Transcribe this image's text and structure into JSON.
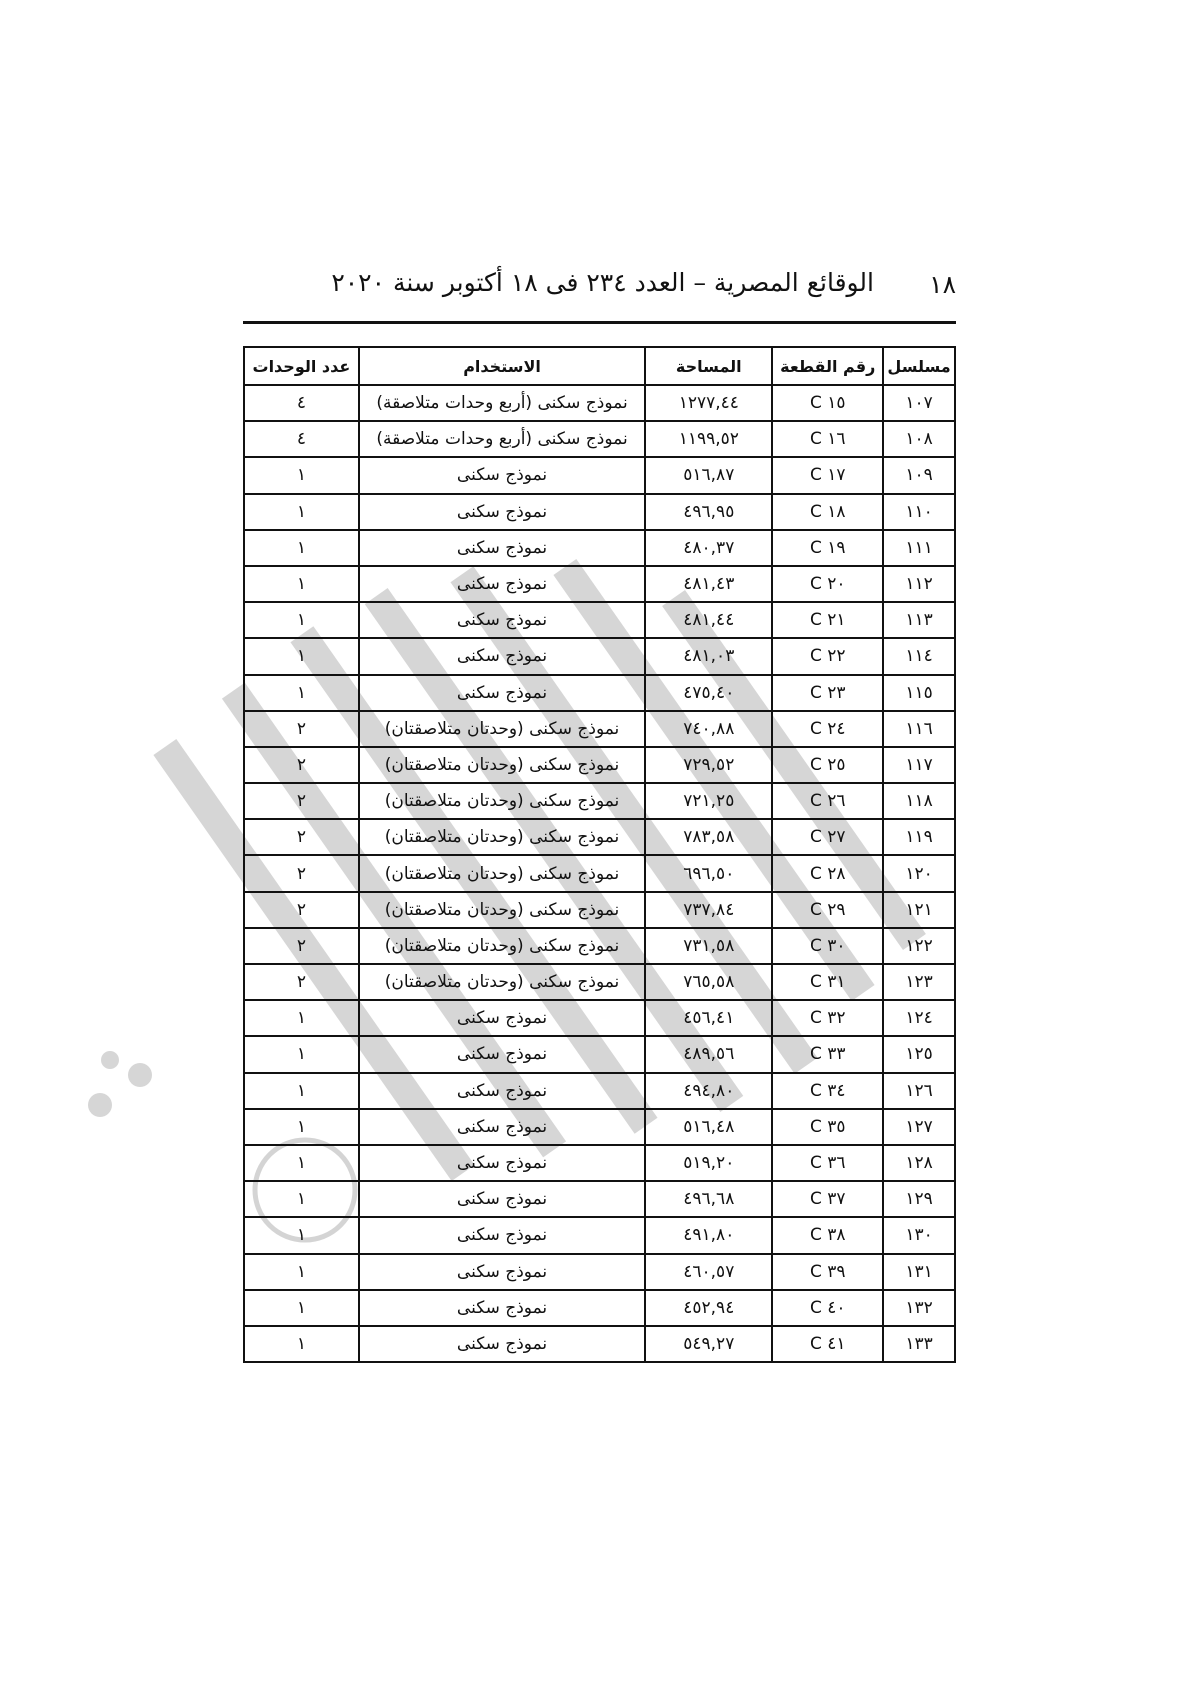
{
  "header": {
    "page_number": "١٨",
    "title": "الوقائع المصرية – العدد ٢٣٤ فى ١٨ أكتوبر سنة ٢٠٢٠"
  },
  "table": {
    "columns": [
      "مسلسل",
      "رقم القطعة",
      "المساحة",
      "الاستخدام",
      "عدد الوحدات"
    ],
    "rows": [
      [
        "١٠٧",
        "C ١٥",
        "١٢٧٧,٤٤",
        "نموذج سكنى (أربع وحدات متلاصقة)",
        "٤"
      ],
      [
        "١٠٨",
        "C ١٦",
        "١١٩٩,٥٢",
        "نموذج سكنى (أربع وحدات متلاصقة)",
        "٤"
      ],
      [
        "١٠٩",
        "C ١٧",
        "٥١٦,٨٧",
        "نموذج سكنى",
        "١"
      ],
      [
        "١١٠",
        "C ١٨",
        "٤٩٦,٩٥",
        "نموذج سكنى",
        "١"
      ],
      [
        "١١١",
        "C ١٩",
        "٤٨٠,٣٧",
        "نموذج سكنى",
        "١"
      ],
      [
        "١١٢",
        "C ٢٠",
        "٤٨١,٤٣",
        "نموذج سكنى",
        "١"
      ],
      [
        "١١٣",
        "C ٢١",
        "٤٨١,٤٤",
        "نموذج سكنى",
        "١"
      ],
      [
        "١١٤",
        "C ٢٢",
        "٤٨١,٠٣",
        "نموذج سكنى",
        "١"
      ],
      [
        "١١٥",
        "C ٢٣",
        "٤٧٥,٤٠",
        "نموذج سكنى",
        "١"
      ],
      [
        "١١٦",
        "C ٢٤",
        "٧٤٠,٨٨",
        "نموذج سكنى (وحدتان متلاصقتان)",
        "٢"
      ],
      [
        "١١٧",
        "C ٢٥",
        "٧٢٩,٥٢",
        "نموذج سكنى (وحدتان متلاصقتان)",
        "٢"
      ],
      [
        "١١٨",
        "C ٢٦",
        "٧٢١,٢٥",
        "نموذج سكنى (وحدتان متلاصقتان)",
        "٢"
      ],
      [
        "١١٩",
        "C ٢٧",
        "٧٨٣,٥٨",
        "نموذج سكنى (وحدتان متلاصقتان)",
        "٢"
      ],
      [
        "١٢٠",
        "C ٢٨",
        "٦٩٦,٥٠",
        "نموذج سكنى (وحدتان متلاصقتان)",
        "٢"
      ],
      [
        "١٢١",
        "C ٢٩",
        "٧٣٧,٨٤",
        "نموذج سكنى (وحدتان متلاصقتان)",
        "٢"
      ],
      [
        "١٢٢",
        "C ٣٠",
        "٧٣١,٥٨",
        "نموذج سكنى (وحدتان متلاصقتان)",
        "٢"
      ],
      [
        "١٢٣",
        "C ٣١",
        "٧٦٥,٥٨",
        "نموذج سكنى (وحدتان متلاصقتان)",
        "٢"
      ],
      [
        "١٢٤",
        "C ٣٢",
        "٤٥٦,٤١",
        "نموذج سكنى",
        "١"
      ],
      [
        "١٢٥",
        "C ٣٣",
        "٤٨٩,٥٦",
        "نموذج سكنى",
        "١"
      ],
      [
        "١٢٦",
        "C ٣٤",
        "٤٩٤,٨٠",
        "نموذج سكنى",
        "١"
      ],
      [
        "١٢٧",
        "C ٣٥",
        "٥١٦,٤٨",
        "نموذج سكنى",
        "١"
      ],
      [
        "١٢٨",
        "C ٣٦",
        "٥١٩,٢٠",
        "نموذج سكنى",
        "١"
      ],
      [
        "١٢٩",
        "C ٣٧",
        "٤٩٦,٦٨",
        "نموذج سكنى",
        "١"
      ],
      [
        "١٣٠",
        "C ٣٨",
        "٤٩١,٨٠",
        "نموذج سكنى",
        "١"
      ],
      [
        "١٣١",
        "C ٣٩",
        "٤٦٠,٥٧",
        "نموذج سكنى",
        "١"
      ],
      [
        "١٣٢",
        "C ٤٠",
        "٤٥٢,٩٤",
        "نموذج سكنى",
        "١"
      ],
      [
        "١٣٣",
        "C ٤١",
        "٥٤٩,٢٧",
        "نموذج سكنى",
        "١"
      ]
    ]
  }
}
